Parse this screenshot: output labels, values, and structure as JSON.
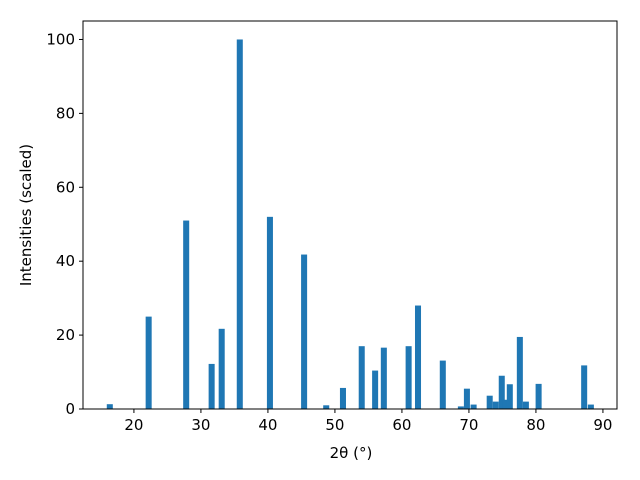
{
  "chart_data": {
    "type": "bar",
    "xlabel": "2θ (°)",
    "ylabel": "Intensities (scaled)",
    "x": [
      16.4,
      22.2,
      27.8,
      31.6,
      33.1,
      35.8,
      40.3,
      45.4,
      48.7,
      51.2,
      54.0,
      56.0,
      57.3,
      61.0,
      62.4,
      66.1,
      68.8,
      69.7,
      70.7,
      73.1,
      74.0,
      74.9,
      75.5,
      76.1,
      77.6,
      78.5,
      80.4,
      87.2,
      88.2
    ],
    "values": [
      1.3,
      25,
      51,
      12.2,
      21.7,
      100,
      52,
      41.8,
      1,
      5.7,
      17,
      10.4,
      16.6,
      17,
      28,
      13.1,
      0.7,
      5.5,
      1.2,
      3.6,
      2,
      9,
      2.5,
      6.7,
      19.5,
      2,
      6.8,
      11.8,
      1.2
    ],
    "color": "#1f77b4",
    "xlim": [
      12.4,
      92.1
    ],
    "xticks": [
      20,
      30,
      40,
      50,
      60,
      70,
      80,
      90
    ],
    "ylim": [
      0,
      105
    ],
    "yticks": [
      0,
      20,
      40,
      60,
      80,
      100
    ],
    "grid": false
  }
}
